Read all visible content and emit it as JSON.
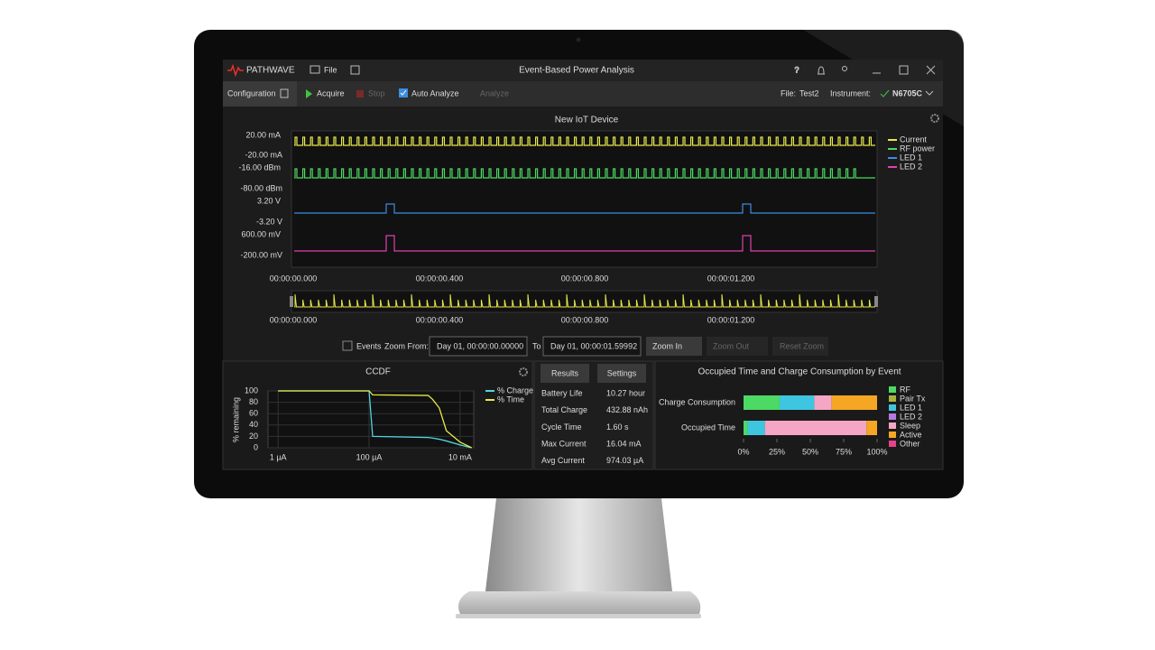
{
  "window": {
    "logo": "PATHWAVE",
    "menu_file": "File",
    "title": "Event-Based Power Analysis"
  },
  "toolbar": {
    "configuration": "Configuration",
    "acquire": "Acquire",
    "stop": "Stop",
    "auto_analyze": "Auto Analyze",
    "analyze": "Analyze",
    "file_label": "File:",
    "file_name": "Test2",
    "instrument_label": "Instrument:",
    "instrument": "N6705C"
  },
  "waveform": {
    "title": "New IoT Device",
    "channels": [
      {
        "name": "Current",
        "color": "#e8e84a",
        "top": "20.00 mA",
        "bottom": "-20.00 mA"
      },
      {
        "name": "RF power",
        "color": "#4cd964",
        "top": "-16.00 dBm",
        "bottom": "-80.00 dBm"
      },
      {
        "name": "LED 1",
        "color": "#3b8de0",
        "top": "3.20 V",
        "bottom": "-3.20 V"
      },
      {
        "name": "LED 2",
        "color": "#e040b0",
        "top": "600.00 mV",
        "bottom": "-200.00 mV"
      }
    ],
    "time_ticks": [
      "00:00:00.000",
      "00:00:00.400",
      "00:00:00.800",
      "00:00:01.200"
    ]
  },
  "zoom": {
    "events": "Events",
    "zoom_from": "Zoom From:",
    "from": "Day 01, 00:00:00.00000",
    "to_label": "To",
    "to": "Day 01, 00:00:01.59992",
    "zoom_in": "Zoom In",
    "zoom_out": "Zoom Out",
    "reset": "Reset Zoom"
  },
  "ccdf": {
    "type": "line",
    "title": "CCDF",
    "y_label": "% remaining",
    "log_x": true,
    "x": [
      1e-06,
      0.0001,
      0.00012,
      0.002,
      0.0025,
      0.0035,
      0.005,
      0.01,
      0.018
    ],
    "series": [
      {
        "name": "% Charge",
        "color": "#4fd6e0",
        "values": [
          100,
          100,
          20,
          18,
          17,
          15,
          12,
          5,
          0
        ]
      },
      {
        "name": "% Time",
        "color": "#e8e84a",
        "values": [
          100,
          100,
          93,
          92,
          85,
          70,
          30,
          10,
          0
        ]
      }
    ],
    "xlim": [
      6e-07,
      0.02
    ],
    "xticks": [
      {
        "value": 1e-06,
        "label": "1 µA"
      },
      {
        "value": 0.0001,
        "label": "100 µA"
      },
      {
        "value": 0.01,
        "label": "10 mA"
      }
    ],
    "ylim": [
      0,
      100
    ],
    "yticks": [
      0,
      20,
      40,
      60,
      80,
      100
    ],
    "grid": true
  },
  "results": {
    "tabs": [
      "Results",
      "Settings"
    ],
    "rows": [
      [
        "Battery Life",
        "10.27 hour"
      ],
      [
        "Total Charge",
        "432.88 nAh"
      ],
      [
        "Cycle Time",
        "1.60 s"
      ],
      [
        "Max Current",
        "16.04 mA"
      ],
      [
        "Avg Current",
        "974.03 µA"
      ]
    ]
  },
  "events_chart": {
    "type": "stacked_bar_horizontal",
    "title": "Occupied Time and Charge Consumption by Event",
    "categories": [
      "Charge Consumption",
      "Occupied Time"
    ],
    "series": [
      {
        "name": "RF",
        "color": "#4cd964",
        "values": [
          27,
          3
        ]
      },
      {
        "name": "Pair Tx",
        "color": "#a4b43c",
        "values": [
          0,
          0
        ]
      },
      {
        "name": "LED 1",
        "color": "#3ec6e0",
        "values": [
          26,
          13
        ]
      },
      {
        "name": "LED 2",
        "color": "#b47ae0",
        "values": [
          0,
          0
        ]
      },
      {
        "name": "Sleep",
        "color": "#f4a6c4",
        "values": [
          13,
          76
        ]
      },
      {
        "name": "Active",
        "color": "#f5a623",
        "values": [
          34,
          8
        ]
      },
      {
        "name": "Other",
        "color": "#e8418c",
        "values": [
          0,
          0
        ]
      }
    ],
    "xlim": [
      0,
      100
    ],
    "xticks": [
      {
        "value": 0,
        "label": "0%"
      },
      {
        "value": 25,
        "label": "25%"
      },
      {
        "value": 50,
        "label": "50%"
      },
      {
        "value": 75,
        "label": "75%"
      },
      {
        "value": 100,
        "label": "100%"
      }
    ]
  }
}
